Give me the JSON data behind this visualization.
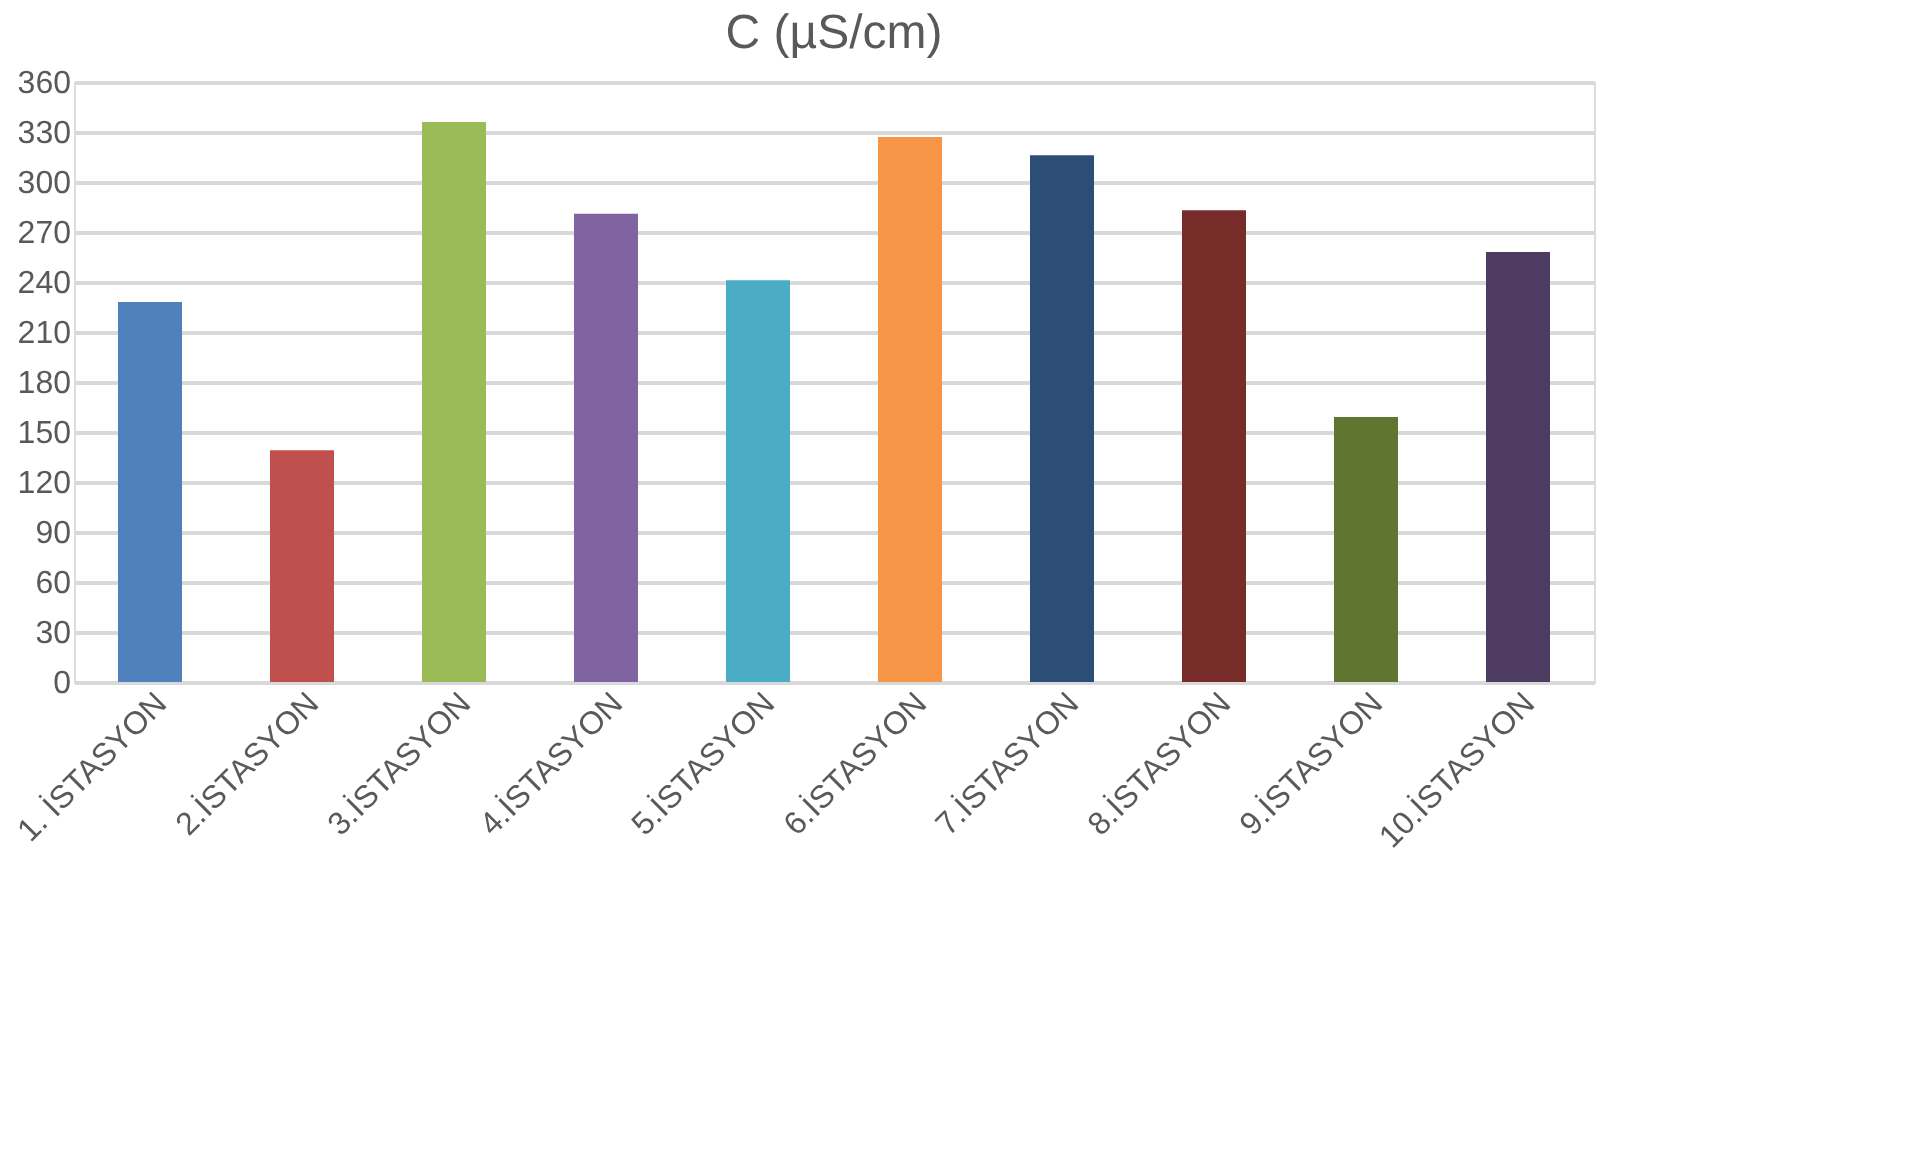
{
  "chart_data": {
    "type": "bar",
    "title": "C (µS/cm)",
    "categories": [
      "1. İSTASYON",
      "2.İSTASYON",
      "3.İSTASYON",
      "4.İSTASYON",
      "5.İSTASYON",
      "6.İSTASYON",
      "7.İSTASYON",
      "8.İSTASYON",
      "9.İSTASYON",
      "10.İSTASYON"
    ],
    "values": [
      228,
      139,
      336,
      281,
      241,
      327,
      316,
      283,
      159,
      258
    ],
    "colors": [
      "#4f81bd",
      "#c0504d",
      "#9bbb59",
      "#8064a2",
      "#4bacc6",
      "#f79646",
      "#2c4d75",
      "#772c2a",
      "#5f7530",
      "#4d3b62"
    ],
    "ylim": [
      0,
      360
    ],
    "yticks": [
      0,
      30,
      60,
      90,
      120,
      150,
      180,
      210,
      240,
      270,
      300,
      330,
      360
    ],
    "grid": "y",
    "legend": false
  }
}
